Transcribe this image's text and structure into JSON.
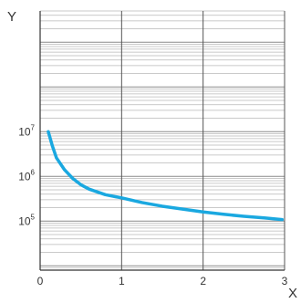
{
  "chart_data": {
    "type": "line",
    "xlabel": "X",
    "ylabel": "Y",
    "xlim": [
      0,
      3
    ],
    "x_ticks": [
      {
        "value": 0,
        "label": "0"
      },
      {
        "value": 1,
        "label": "1"
      },
      {
        "value": 2,
        "label": "2"
      },
      {
        "value": 3,
        "label": "3"
      }
    ],
    "y_scale": "log",
    "ylim": [
      8000,
      5000000000
    ],
    "y_ticks": [
      {
        "value": 100000,
        "base": "10",
        "exp": "5"
      },
      {
        "value": 1000000,
        "base": "10",
        "exp": "6"
      },
      {
        "value": 10000000,
        "base": "10",
        "exp": "7"
      }
    ],
    "grid": true,
    "series": [
      {
        "color": "#1aa8e0",
        "x": [
          0.1,
          0.15,
          0.2,
          0.3,
          0.4,
          0.5,
          0.6,
          0.8,
          1.0,
          1.25,
          1.5,
          1.75,
          2.0,
          2.25,
          2.5,
          2.75,
          2.97
        ],
        "y": [
          10000000,
          4800000,
          2600000,
          1400000,
          900000,
          650000,
          520000,
          390000,
          330000,
          260000,
          215000,
          185000,
          160000,
          142000,
          128000,
          118000,
          108000
        ]
      }
    ],
    "colors": {
      "curve": "#1aa8e0",
      "minor_grid": "#b8b8b8",
      "major_grid": "#555555",
      "text": "#333333"
    }
  }
}
